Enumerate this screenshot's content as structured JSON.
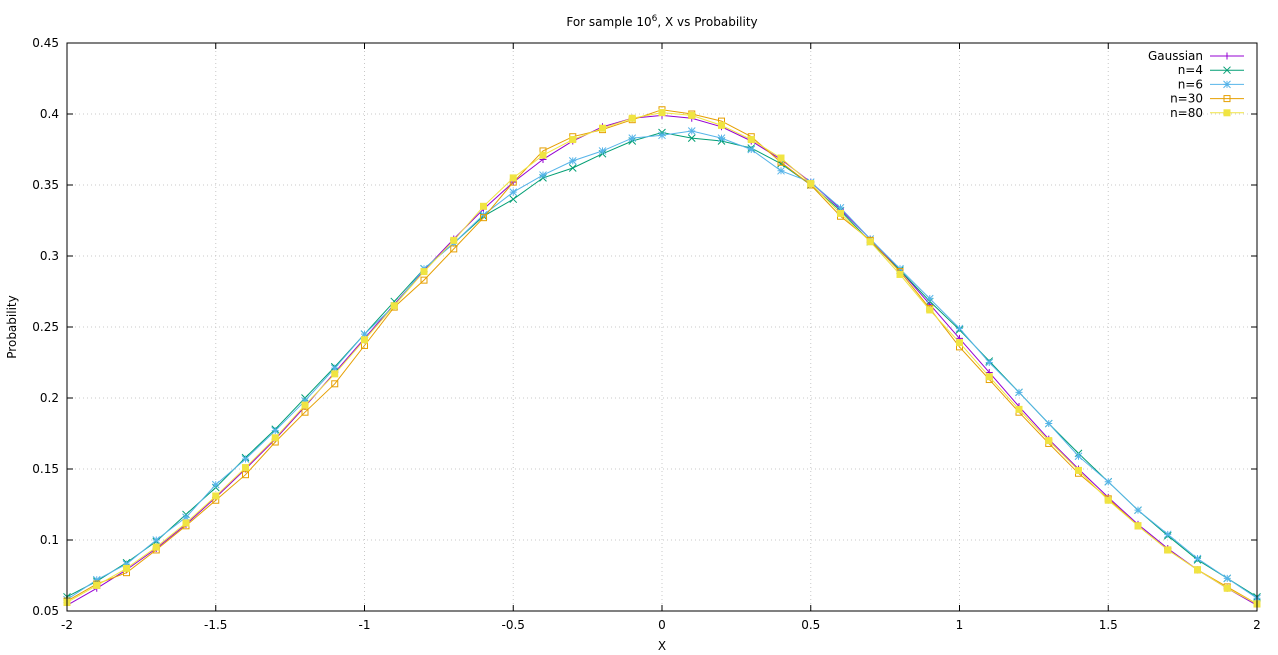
{
  "chart_data": {
    "type": "line",
    "title_prefix": "For sample 10",
    "title_exp": "6",
    "title_suffix": ", X vs Probability",
    "xlabel": "X",
    "ylabel": "Probability",
    "xlim": [
      -2,
      2
    ],
    "ylim": [
      0.05,
      0.45
    ],
    "xticks": [
      -2,
      -1.5,
      -1,
      -0.5,
      0,
      0.5,
      1,
      1.5,
      2
    ],
    "yticks": [
      0.05,
      0.1,
      0.15,
      0.2,
      0.25,
      0.3,
      0.35,
      0.4,
      0.45
    ],
    "xtick_labels": [
      "-2",
      "-1.5",
      "-1",
      "-0.5",
      "0",
      "0.5",
      "1",
      "1.5",
      "2"
    ],
    "ytick_labels": [
      "0.05",
      "0.1",
      "0.15",
      "0.2",
      "0.25",
      "0.3",
      "0.35",
      "0.4",
      "0.45"
    ],
    "grid": true,
    "legend_position": "top-right",
    "x": [
      -2.0,
      -1.9,
      -1.8,
      -1.7,
      -1.6,
      -1.5,
      -1.4,
      -1.3,
      -1.2,
      -1.1,
      -1.0,
      -0.9,
      -0.8,
      -0.7,
      -0.6,
      -0.5,
      -0.4,
      -0.3,
      -0.2,
      -0.1,
      0.0,
      0.1,
      0.2,
      0.3,
      0.4,
      0.5,
      0.6,
      0.7,
      0.8,
      0.9,
      1.0,
      1.1,
      1.2,
      1.3,
      1.4,
      1.5,
      1.6,
      1.7,
      1.8,
      1.9,
      2.0
    ],
    "series": [
      {
        "name": "Gaussian",
        "color": "#9400d3",
        "marker": "plus",
        "values": [
          0.054,
          0.066,
          0.079,
          0.094,
          0.111,
          0.13,
          0.15,
          0.171,
          0.194,
          0.218,
          0.242,
          0.266,
          0.29,
          0.312,
          0.333,
          0.352,
          0.368,
          0.381,
          0.391,
          0.397,
          0.399,
          0.397,
          0.391,
          0.381,
          0.368,
          0.352,
          0.333,
          0.312,
          0.29,
          0.266,
          0.242,
          0.218,
          0.194,
          0.171,
          0.15,
          0.13,
          0.111,
          0.094,
          0.079,
          0.066,
          0.054
        ]
      },
      {
        "name": "n=4",
        "color": "#009e73",
        "marker": "cross",
        "values": [
          0.06,
          0.071,
          0.084,
          0.099,
          0.118,
          0.137,
          0.158,
          0.178,
          0.2,
          0.222,
          0.245,
          0.268,
          0.291,
          0.309,
          0.328,
          0.34,
          0.355,
          0.362,
          0.372,
          0.381,
          0.387,
          0.383,
          0.381,
          0.376,
          0.365,
          0.35,
          0.332,
          0.31,
          0.29,
          0.268,
          0.248,
          0.226,
          0.204,
          0.182,
          0.161,
          0.141,
          0.121,
          0.103,
          0.086,
          0.073,
          0.06
        ]
      },
      {
        "name": "n=6",
        "color": "#56b4e9",
        "marker": "star",
        "values": [
          0.058,
          0.072,
          0.083,
          0.1,
          0.116,
          0.139,
          0.157,
          0.177,
          0.198,
          0.221,
          0.245,
          0.265,
          0.291,
          0.309,
          0.329,
          0.345,
          0.357,
          0.367,
          0.374,
          0.383,
          0.385,
          0.388,
          0.383,
          0.375,
          0.36,
          0.352,
          0.334,
          0.312,
          0.291,
          0.27,
          0.249,
          0.225,
          0.204,
          0.182,
          0.159,
          0.141,
          0.121,
          0.104,
          0.087,
          0.073,
          0.059
        ]
      },
      {
        "name": "n=30",
        "color": "#e69f00",
        "marker": "square",
        "values": [
          0.057,
          0.069,
          0.077,
          0.093,
          0.11,
          0.128,
          0.146,
          0.169,
          0.19,
          0.21,
          0.237,
          0.264,
          0.283,
          0.305,
          0.327,
          0.352,
          0.374,
          0.384,
          0.389,
          0.396,
          0.403,
          0.4,
          0.395,
          0.384,
          0.366,
          0.35,
          0.328,
          0.311,
          0.289,
          0.263,
          0.236,
          0.213,
          0.19,
          0.168,
          0.147,
          0.129,
          0.11,
          0.093,
          0.079,
          0.067,
          0.055
        ]
      },
      {
        "name": "n=80",
        "color": "#f0e442",
        "marker": "filled-square",
        "values": [
          0.056,
          0.068,
          0.08,
          0.095,
          0.112,
          0.131,
          0.151,
          0.172,
          0.195,
          0.217,
          0.241,
          0.265,
          0.289,
          0.311,
          0.335,
          0.355,
          0.371,
          0.382,
          0.39,
          0.397,
          0.401,
          0.399,
          0.392,
          0.382,
          0.369,
          0.351,
          0.33,
          0.31,
          0.287,
          0.262,
          0.239,
          0.215,
          0.192,
          0.17,
          0.149,
          0.128,
          0.11,
          0.093,
          0.079,
          0.066,
          0.055
        ]
      }
    ]
  }
}
